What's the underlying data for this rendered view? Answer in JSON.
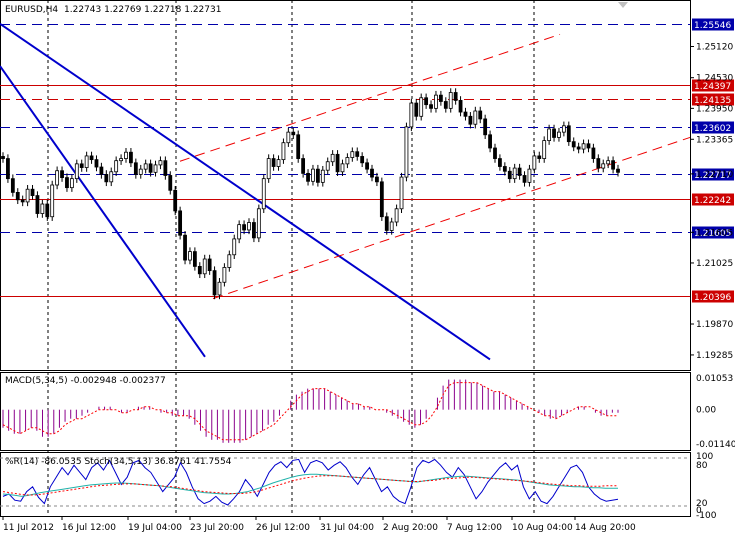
{
  "header": {
    "symbol": "EURUSD,H4",
    "ohlc": "1.22743 1.22769 1.22718 1.22731"
  },
  "colors": {
    "background": "#ffffff",
    "frame": "#000000",
    "grid": "#000000",
    "support_resistance_blue": "#0000aa",
    "support_resistance_red": "#cc0000",
    "trendline": "#0000cc",
    "channel": "#ee0000",
    "macd_histogram": "#8b008b",
    "macd_signal": "#ff0000",
    "williams_r": "#0000cc",
    "stoch_main": "#20b2aa",
    "stoch_signal": "#ff0000",
    "label_blue_bg": "#0000aa",
    "label_red_bg": "#cc0000"
  },
  "chart_data": [
    {
      "type": "candlestick",
      "title": "EURUSD,H4",
      "ylim": [
        1.19,
        1.26
      ],
      "price_axis_ticks": [
        "1.25120",
        "1.24530",
        "1.23950",
        "1.23365",
        "1.22710",
        "1.21605",
        "1.21025",
        "1.19870",
        "1.19285"
      ],
      "horizontal_levels": [
        {
          "value": "1.25546",
          "style": "dashed",
          "color": "blue"
        },
        {
          "value": "1.24397",
          "style": "solid",
          "color": "red"
        },
        {
          "value": "1.24135",
          "style": "dashed",
          "color": "red"
        },
        {
          "value": "1.23602",
          "style": "dashed",
          "color": "blue"
        },
        {
          "value": "1.22717",
          "style": "dashed",
          "color": "blue"
        },
        {
          "value": "1.22242",
          "style": "solid",
          "color": "red"
        },
        {
          "value": "1.21605",
          "style": "dashed",
          "color": "blue"
        },
        {
          "value": "1.20396",
          "style": "solid",
          "color": "red"
        }
      ],
      "downtrend_lines": [
        {
          "from": [
            0,
            1.2475
          ],
          "to": [
            205,
            1.1925
          ]
        },
        {
          "from": [
            0,
            1.2555
          ],
          "to": [
            490,
            1.192
          ]
        }
      ],
      "uptrend_channel": [
        {
          "from": [
            213,
            1.2035
          ],
          "to": [
            690,
            1.234
          ]
        },
        {
          "from": [
            180,
            1.2295
          ],
          "to": [
            560,
            1.2535
          ]
        }
      ],
      "candles_close": [
        1.23,
        1.2262,
        1.2236,
        1.2222,
        1.2218,
        1.2242,
        1.223,
        1.2196,
        1.2214,
        1.219,
        1.225,
        1.2277,
        1.2264,
        1.2245,
        1.2262,
        1.229,
        1.2283,
        1.2305,
        1.2298,
        1.2284,
        1.227,
        1.2256,
        1.2275,
        1.2296,
        1.23,
        1.2312,
        1.2292,
        1.227,
        1.228,
        1.229,
        1.2274,
        1.2288,
        1.2296,
        1.2268,
        1.224,
        1.2201,
        1.2155,
        1.2108,
        1.2124,
        1.2096,
        1.2082,
        1.211,
        1.2088,
        1.2042,
        1.2066,
        1.2094,
        1.2118,
        1.2148,
        1.2175,
        1.2165,
        1.2179,
        1.215,
        1.2205,
        1.2262,
        1.23,
        1.2285,
        1.2298,
        1.233,
        1.235,
        1.2345,
        1.23,
        1.2272,
        1.2257,
        1.228,
        1.2255,
        1.2278,
        1.2294,
        1.2308,
        1.2275,
        1.229,
        1.2302,
        1.2313,
        1.2304,
        1.2292,
        1.228,
        1.2265,
        1.2256,
        1.219,
        1.2164,
        1.218,
        1.2205,
        1.2265,
        1.236,
        1.2405,
        1.238,
        1.2415,
        1.2402,
        1.2395,
        1.242,
        1.2408,
        1.2395,
        1.2425,
        1.241,
        1.2388,
        1.238,
        1.2365,
        1.239,
        1.2375,
        1.2345,
        1.232,
        1.23,
        1.2285,
        1.2276,
        1.2262,
        1.2282,
        1.2268,
        1.2255,
        1.228,
        1.2305,
        1.23,
        1.2334,
        1.2356,
        1.234,
        1.235,
        1.2362,
        1.2332,
        1.2322,
        1.2318,
        1.2328,
        1.232,
        1.23,
        1.2282,
        1.229,
        1.2296,
        1.228,
        1.2274
      ]
    },
    {
      "type": "bar",
      "title": "MACD(5,34,5) -0.002948 -0.002377",
      "ylim": [
        -0.0114,
        0.01053
      ],
      "axis_ticks": [
        "0.01053",
        "0.00",
        "-0.01140"
      ],
      "histogram": [
        -0.006,
        -0.007,
        -0.008,
        -0.008,
        -0.007,
        -0.006,
        -0.007,
        -0.009,
        -0.009,
        -0.008,
        -0.006,
        -0.004,
        -0.003,
        -0.003,
        -0.002,
        -0.001,
        0.0,
        0.001,
        0.001,
        0.001,
        0.0,
        -0.001,
        -0.001,
        0.0,
        0.001,
        0.001,
        0.001,
        0.0,
        -0.001,
        -0.001,
        -0.002,
        -0.002,
        -0.002,
        -0.003,
        -0.005,
        -0.007,
        -0.009,
        -0.01,
        -0.01,
        -0.011,
        -0.011,
        -0.011,
        -0.011,
        -0.01,
        -0.009,
        -0.008,
        -0.007,
        -0.005,
        -0.004,
        -0.002,
        0.0,
        0.003,
        0.005,
        0.006,
        0.007,
        0.007,
        0.007,
        0.007,
        0.006,
        0.005,
        0.004,
        0.003,
        0.002,
        0.002,
        0.001,
        0.001,
        0.0,
        0.0,
        -0.001,
        -0.002,
        -0.003,
        -0.004,
        -0.005,
        -0.006,
        -0.005,
        -0.003,
        0.0,
        0.004,
        0.008,
        0.01,
        0.01,
        0.01,
        0.01,
        0.009,
        0.009,
        0.008,
        0.007,
        0.006,
        0.006,
        0.005,
        0.004,
        0.003,
        0.002,
        0.001,
        0.0,
        -0.001,
        -0.002,
        -0.003,
        -0.003,
        -0.002,
        -0.001,
        0.0,
        0.001,
        0.001,
        0.0,
        -0.001,
        -0.002,
        -0.002,
        -0.001,
        -0.001
      ],
      "signal": [
        -0.005,
        -0.006,
        -0.007,
        -0.008,
        -0.007,
        -0.006,
        -0.006,
        -0.007,
        -0.008,
        -0.008,
        -0.007,
        -0.005,
        -0.004,
        -0.003,
        -0.003,
        -0.002,
        -0.001,
        0.0,
        0.0,
        0.0,
        0.0,
        -0.001,
        -0.001,
        0.0,
        0.0,
        0.001,
        0.001,
        0.0,
        0.0,
        -0.001,
        -0.001,
        -0.002,
        -0.002,
        -0.002,
        -0.003,
        -0.005,
        -0.007,
        -0.008,
        -0.009,
        -0.01,
        -0.01,
        -0.01,
        -0.01,
        -0.01,
        -0.009,
        -0.008,
        -0.007,
        -0.006,
        -0.005,
        -0.003,
        -0.001,
        0.001,
        0.003,
        0.005,
        0.006,
        0.007,
        0.007,
        0.007,
        0.006,
        0.005,
        0.004,
        0.003,
        0.002,
        0.002,
        0.001,
        0.001,
        0.0,
        0.0,
        0.0,
        -0.001,
        -0.002,
        -0.003,
        -0.004,
        -0.005,
        -0.005,
        -0.004,
        -0.002,
        0.001,
        0.005,
        0.008,
        0.009,
        0.009,
        0.009,
        0.009,
        0.009,
        0.008,
        0.007,
        0.006,
        0.006,
        0.005,
        0.004,
        0.003,
        0.002,
        0.001,
        0.0,
        -0.001,
        -0.002,
        -0.002,
        -0.003,
        -0.002,
        -0.001,
        0.0,
        0.001,
        0.001,
        0.001,
        0.0,
        -0.001,
        -0.002,
        -0.002,
        -0.002
      ]
    },
    {
      "type": "line",
      "title": "%R(14) -86.0535  Stoch(34,5,13) 36.8761 41.7554",
      "axis_ticks": [
        "100",
        "80",
        "20",
        "0",
        "-100"
      ],
      "series": [
        {
          "name": "%R(14)",
          "values": [
            -80,
            -75,
            -88,
            -90,
            -70,
            -60,
            -82,
            -95,
            -60,
            -40,
            -20,
            -35,
            -15,
            -30,
            -45,
            -20,
            -10,
            -25,
            -5,
            -30,
            -55,
            -40,
            -10,
            -5,
            -20,
            -30,
            -50,
            -70,
            -55,
            -40,
            -10,
            -30,
            -60,
            -85,
            -95,
            -90,
            -80,
            -92,
            -98,
            -85,
            -70,
            -45,
            -60,
            -80,
            -55,
            -30,
            -15,
            -8,
            -20,
            -5,
            -3,
            -30,
            -10,
            -5,
            -10,
            -25,
            -15,
            -8,
            -20,
            -40,
            -55,
            -35,
            -20,
            -45,
            -70,
            -60,
            -80,
            -90,
            -95,
            -60,
            -20,
            -5,
            -10,
            -3,
            -15,
            -30,
            -40,
            -20,
            -35,
            -60,
            -85,
            -70,
            -50,
            -35,
            -20,
            -10,
            -25,
            -15,
            -60,
            -85,
            -70,
            -90,
            -95,
            -80,
            -60,
            -40,
            -20,
            -15,
            -30,
            -60,
            -75,
            -85,
            -90,
            -88,
            -86
          ]
        },
        {
          "name": "Stoch(34,5,13)",
          "values": [
            25,
            24,
            22,
            20,
            22,
            25,
            28,
            30,
            32,
            34,
            36,
            38,
            40,
            42,
            44,
            45,
            46,
            47,
            48,
            48,
            47,
            46,
            45,
            44,
            43,
            42,
            40,
            38,
            36,
            34,
            32,
            30,
            28,
            27,
            26,
            25,
            25,
            26,
            28,
            30,
            34,
            38,
            43,
            48,
            52,
            56,
            60,
            63,
            65,
            66,
            66,
            65,
            64,
            63,
            62,
            61,
            60,
            59,
            58,
            57,
            56,
            55,
            54,
            53,
            52,
            51,
            50,
            52,
            54,
            56,
            58,
            60,
            61,
            62,
            62,
            61,
            60,
            59,
            58,
            57,
            56,
            55,
            54,
            52,
            50,
            48,
            46,
            44,
            43,
            42,
            41,
            40,
            40,
            39,
            38,
            38,
            37,
            37,
            37
          ]
        },
        {
          "name": "Stoch signal",
          "values": [
            30,
            28,
            26,
            24,
            23,
            23,
            24,
            26,
            28,
            30,
            32,
            34,
            36,
            38,
            40,
            42,
            43,
            44,
            45,
            46,
            46,
            46,
            45,
            44,
            43,
            42,
            41,
            40,
            38,
            36,
            34,
            32,
            30,
            29,
            28,
            27,
            26,
            26,
            26,
            27,
            29,
            32,
            36,
            40,
            44,
            48,
            52,
            55,
            58,
            60,
            62,
            63,
            63,
            63,
            62,
            61,
            60,
            59,
            58,
            57,
            56,
            55,
            54,
            53,
            52,
            51,
            51,
            52,
            53,
            54,
            56,
            57,
            58,
            59,
            60,
            60,
            59,
            58,
            57,
            56,
            55,
            54,
            53,
            52,
            51,
            49,
            48,
            46,
            45,
            44,
            43,
            42,
            42,
            41,
            41,
            41,
            42,
            42,
            42
          ]
        }
      ]
    }
  ],
  "time_axis": {
    "labels": [
      "11 Jul 2012",
      "16 Jul 12:00",
      "19 Jul 04:00",
      "23 Jul 20:00",
      "26 Jul 12:00",
      "31 Jul 04:00",
      "2 Aug 20:00",
      "7 Aug 12:00",
      "10 Aug 04:00",
      "14 Aug 20:00"
    ]
  }
}
